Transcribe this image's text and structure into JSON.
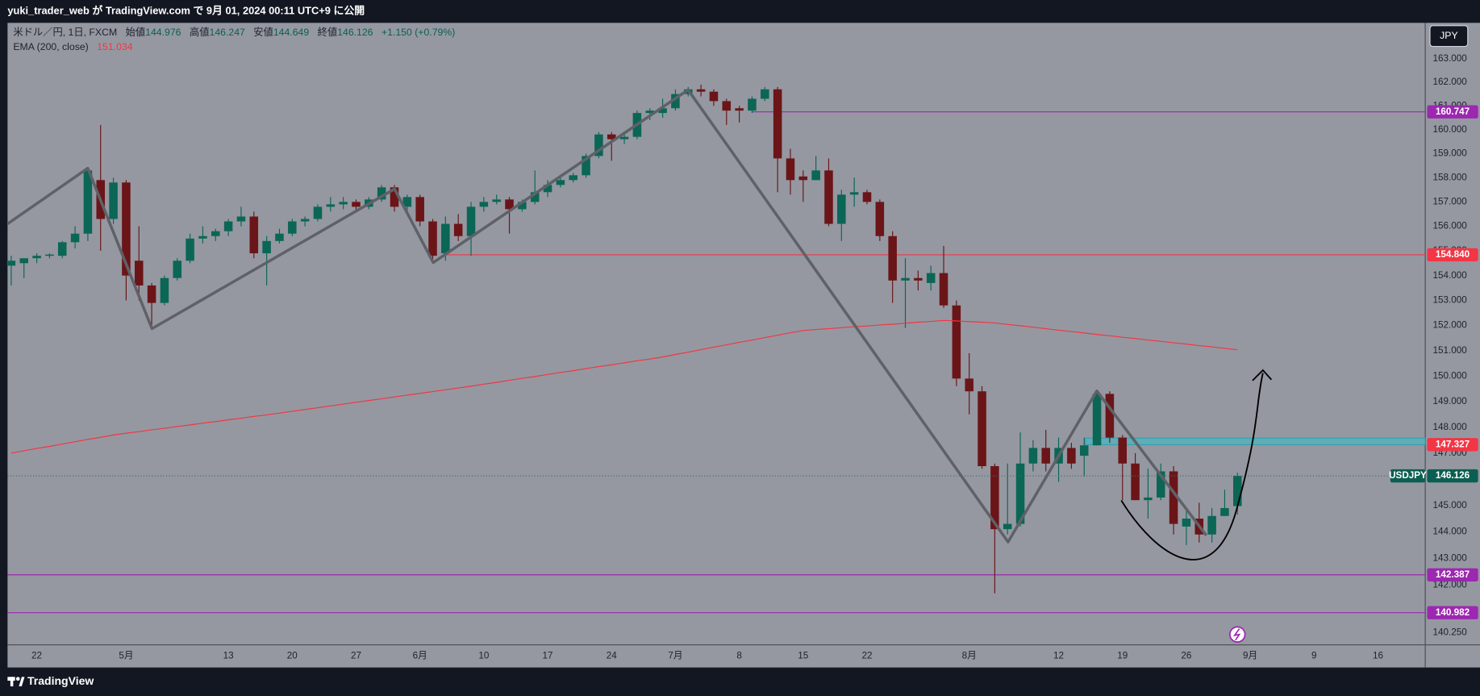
{
  "chart_data": {
    "type": "candlestick",
    "publish_line": "yuki_trader_web が TradingView.com で 9月 01, 2024 00:11 UTC+9 に公開",
    "symbol": "米ドル／円, 1日, FXCM",
    "ohlc_labels": [
      "始値",
      "高値",
      "安値",
      "終値"
    ],
    "change": "+1.150 (+0.79%)",
    "currency": "JPY",
    "brand": "TradingView",
    "log_y": true,
    "ylim": [
      139.8,
      164.54
    ],
    "yticks": [
      {
        "value": 163,
        "label": "163.000"
      },
      {
        "value": 162,
        "label": "162.000"
      },
      {
        "value": 161,
        "label": "161.000"
      },
      {
        "value": 160,
        "label": "160.000"
      },
      {
        "value": 159,
        "label": "159.000"
      },
      {
        "value": 158,
        "label": "158.000"
      },
      {
        "value": 157,
        "label": "157.000"
      },
      {
        "value": 156,
        "label": "156.000"
      },
      {
        "value": 155,
        "label": "155.000"
      },
      {
        "value": 154,
        "label": "154.000"
      },
      {
        "value": 153,
        "label": "153.000"
      },
      {
        "value": 152,
        "label": "152.000"
      },
      {
        "value": 151,
        "label": "151.000"
      },
      {
        "value": 150,
        "label": "150.000"
      },
      {
        "value": 149,
        "label": "149.000"
      },
      {
        "value": 148,
        "label": "148.000"
      },
      {
        "value": 147,
        "label": "147.000"
      },
      {
        "value": 145,
        "label": "145.000"
      },
      {
        "value": 144,
        "label": "144.000"
      },
      {
        "value": 143,
        "label": "143.000"
      },
      {
        "value": 142,
        "label": "142.000"
      },
      {
        "value": 140.25,
        "label": "140.250"
      }
    ],
    "categories": [
      null,
      null,
      "22",
      null,
      null,
      null,
      null,
      null,
      null,
      "5月",
      null,
      null,
      null,
      null,
      null,
      null,
      null,
      "13",
      null,
      null,
      null,
      null,
      "20",
      null,
      null,
      null,
      null,
      "27",
      null,
      null,
      null,
      null,
      "6月",
      null,
      null,
      null,
      null,
      "10",
      null,
      null,
      null,
      null,
      "17",
      null,
      null,
      null,
      null,
      "24",
      null,
      null,
      null,
      null,
      "7月",
      null,
      null,
      null,
      null,
      "8",
      null,
      null,
      null,
      null,
      "15",
      null,
      null,
      null,
      null,
      "22",
      null,
      null,
      null,
      null,
      null,
      null,
      null,
      "8月",
      null,
      null,
      null,
      null,
      null,
      null,
      "12",
      null,
      null,
      null,
      null,
      "19",
      null,
      null,
      null,
      null,
      "26",
      null,
      null,
      null,
      null,
      "9月",
      null,
      null,
      null,
      null,
      "9",
      null,
      null,
      null,
      null,
      "16",
      null,
      null,
      null,
      null
    ],
    "series": [
      {
        "name": "USDJPY",
        "up_color": "#0b6656",
        "down_color": "#6b1518",
        "open": [
          154.4,
          154.5,
          154.7,
          154.8,
          154.8,
          155.35,
          155.7,
          157.9,
          156.3,
          157.8,
          154.6,
          153.6,
          152.9,
          153.9,
          154.6,
          155.5,
          155.6,
          155.8,
          156.2,
          156.4,
          154.9,
          155.4,
          155.7,
          156.2,
          156.3,
          156.8,
          156.9,
          157.0,
          156.8,
          157.1,
          157.6,
          156.8,
          157.2,
          156.2,
          154.9,
          156.1,
          155.6,
          156.8,
          157.0,
          157.1,
          156.7,
          157.0,
          157.4,
          157.7,
          157.9,
          158.1,
          158.9,
          159.8,
          159.6,
          159.7,
          160.7,
          160.7,
          160.9,
          161.5,
          161.7,
          161.6,
          161.2,
          160.9,
          160.8,
          161.3,
          161.7,
          158.8,
          158.05,
          157.9,
          158.3,
          156.1,
          157.3,
          157.4,
          157.0,
          155.6,
          153.8,
          153.9,
          153.7,
          154.1,
          152.8,
          149.9,
          149.4,
          146.5,
          144.1,
          144.3,
          146.6,
          147.2,
          146.6,
          147.2,
          146.9,
          147.3,
          149.3,
          147.6,
          146.6,
          145.2,
          145.3,
          146.3,
          144.2,
          144.5,
          143.9,
          144.6,
          144.976,
          null,
          null,
          null,
          null,
          null,
          null,
          null,
          null,
          null,
          null,
          null,
          null,
          null,
          null,
          null
        ],
        "high": [
          154.8,
          154.7,
          154.9,
          154.9,
          155.4,
          156.0,
          158.4,
          160.2,
          158.0,
          157.9,
          156.0,
          153.7,
          154.0,
          154.7,
          155.7,
          156.0,
          155.9,
          156.3,
          156.8,
          156.6,
          155.6,
          155.9,
          156.3,
          156.4,
          156.9,
          157.2,
          157.2,
          157.1,
          157.2,
          157.7,
          157.7,
          157.3,
          157.3,
          156.3,
          156.4,
          156.5,
          157.0,
          157.2,
          157.3,
          157.2,
          157.1,
          158.3,
          157.9,
          158.0,
          158.2,
          159.0,
          159.9,
          159.9,
          159.9,
          160.8,
          160.9,
          161.3,
          161.7,
          161.8,
          161.9,
          161.7,
          161.3,
          161.0,
          161.4,
          161.8,
          161.8,
          159.2,
          158.3,
          158.9,
          158.8,
          157.5,
          158.0,
          157.5,
          157.1,
          155.8,
          154.7,
          154.2,
          154.4,
          155.2,
          153.0,
          150.9,
          149.6,
          146.6,
          146.6,
          147.8,
          147.5,
          147.9,
          147.6,
          147.4,
          147.6,
          149.4,
          149.4,
          147.7,
          147.0,
          146.4,
          146.6,
          146.5,
          144.9,
          145.1,
          144.9,
          145.6,
          146.247,
          null,
          null,
          null,
          null,
          null,
          null,
          null,
          null,
          null,
          null,
          null,
          null,
          null,
          null,
          null
        ],
        "low": [
          153.6,
          153.9,
          154.5,
          154.7,
          154.7,
          155.1,
          155.4,
          155.0,
          156.1,
          153.0,
          153.0,
          151.9,
          152.8,
          153.8,
          154.5,
          155.3,
          155.4,
          155.6,
          156.0,
          154.7,
          153.6,
          155.3,
          155.6,
          156.0,
          156.2,
          156.6,
          156.7,
          156.6,
          156.7,
          157.0,
          156.6,
          156.5,
          156.0,
          154.6,
          154.6,
          155.4,
          154.8,
          156.6,
          156.9,
          155.7,
          156.6,
          156.9,
          157.2,
          157.6,
          157.8,
          158.0,
          158.8,
          158.7,
          159.4,
          159.6,
          160.4,
          160.5,
          160.8,
          161.4,
          161.4,
          161.0,
          160.2,
          160.3,
          160.7,
          161.2,
          157.4,
          157.3,
          157.0,
          157.9,
          156.0,
          155.4,
          156.8,
          156.9,
          155.4,
          152.9,
          151.9,
          153.4,
          153.4,
          152.7,
          149.6,
          148.5,
          146.4,
          141.7,
          143.9,
          144.2,
          146.3,
          146.3,
          145.9,
          146.4,
          146.1,
          147.3,
          147.4,
          145.2,
          145.2,
          144.5,
          145.2,
          143.9,
          143.5,
          143.6,
          143.6,
          144.6,
          144.649,
          null,
          null,
          null,
          null,
          null,
          null,
          null,
          null,
          null,
          null,
          null,
          null,
          null,
          null,
          null
        ],
        "close": [
          154.6,
          154.7,
          154.8,
          154.85,
          155.35,
          155.7,
          158.3,
          156.3,
          157.8,
          154.0,
          153.6,
          152.9,
          153.9,
          154.6,
          155.5,
          155.6,
          155.8,
          156.2,
          156.4,
          154.9,
          155.4,
          155.7,
          156.2,
          156.3,
          156.8,
          156.9,
          157.0,
          156.8,
          157.1,
          157.6,
          156.8,
          157.2,
          156.2,
          154.8,
          156.1,
          155.6,
          156.8,
          157.0,
          157.1,
          156.7,
          157.0,
          157.4,
          157.7,
          157.9,
          158.1,
          158.9,
          159.8,
          159.6,
          159.7,
          160.7,
          160.8,
          160.9,
          161.5,
          161.7,
          161.6,
          161.2,
          160.8,
          160.8,
          161.3,
          161.7,
          158.8,
          157.9,
          157.9,
          158.3,
          156.1,
          157.3,
          157.4,
          157.0,
          155.6,
          153.8,
          153.9,
          153.8,
          154.1,
          152.8,
          149.9,
          149.4,
          146.5,
          144.1,
          144.3,
          146.6,
          147.2,
          146.6,
          147.2,
          146.6,
          147.3,
          149.3,
          147.6,
          146.6,
          145.2,
          145.3,
          146.3,
          144.3,
          144.5,
          143.9,
          144.6,
          144.9,
          146.126,
          null,
          null,
          null,
          null,
          null,
          null,
          null,
          null,
          null,
          null,
          null,
          null,
          null,
          null,
          null
        ]
      },
      {
        "name": "EMA (200, close)",
        "type": "line",
        "color": "#f23645",
        "values": [
          147.0,
          147.09,
          147.18,
          147.26,
          147.35,
          147.44,
          147.53,
          147.61,
          147.7,
          147.77,
          147.83,
          147.9,
          147.96,
          148.03,
          148.09,
          148.16,
          148.22,
          148.29,
          148.35,
          148.42,
          148.48,
          148.55,
          148.62,
          148.69,
          148.76,
          148.83,
          148.9,
          148.97,
          149.04,
          149.11,
          149.18,
          149.25,
          149.32,
          149.39,
          149.46,
          149.53,
          149.6,
          149.68,
          149.75,
          149.83,
          149.91,
          149.98,
          150.06,
          150.14,
          150.21,
          150.29,
          150.37,
          150.44,
          150.52,
          150.6,
          150.67,
          150.75,
          150.85,
          150.94,
          151.04,
          151.14,
          151.23,
          151.33,
          151.42,
          151.52,
          151.61,
          151.71,
          151.8,
          151.84,
          151.87,
          151.91,
          151.95,
          151.98,
          152.02,
          152.05,
          152.09,
          152.13,
          152.16,
          152.2,
          152.18,
          152.15,
          152.13,
          152.1,
          152.04,
          151.99,
          151.93,
          151.87,
          151.81,
          151.76,
          151.7,
          151.64,
          151.59,
          151.53,
          151.48,
          151.42,
          151.37,
          151.31,
          151.26,
          151.2,
          151.15,
          151.09,
          151.034,
          null,
          null,
          null,
          null,
          null,
          null,
          null,
          null,
          null,
          null,
          null,
          null,
          null,
          null,
          null
        ]
      }
    ],
    "price_lines": [
      {
        "value": 160.747,
        "label": "160.747",
        "color": "#9c27b0"
      },
      {
        "value": 154.84,
        "label": "154.840",
        "color": "#f23645"
      },
      {
        "value": 147.327,
        "label": "147.327",
        "color": "#f23645"
      },
      {
        "value": 142.387,
        "label": "142.387",
        "color": "#9c27b0"
      },
      {
        "value": 140.982,
        "label": "140.982",
        "color": "#9c27b0"
      }
    ]
  }
}
